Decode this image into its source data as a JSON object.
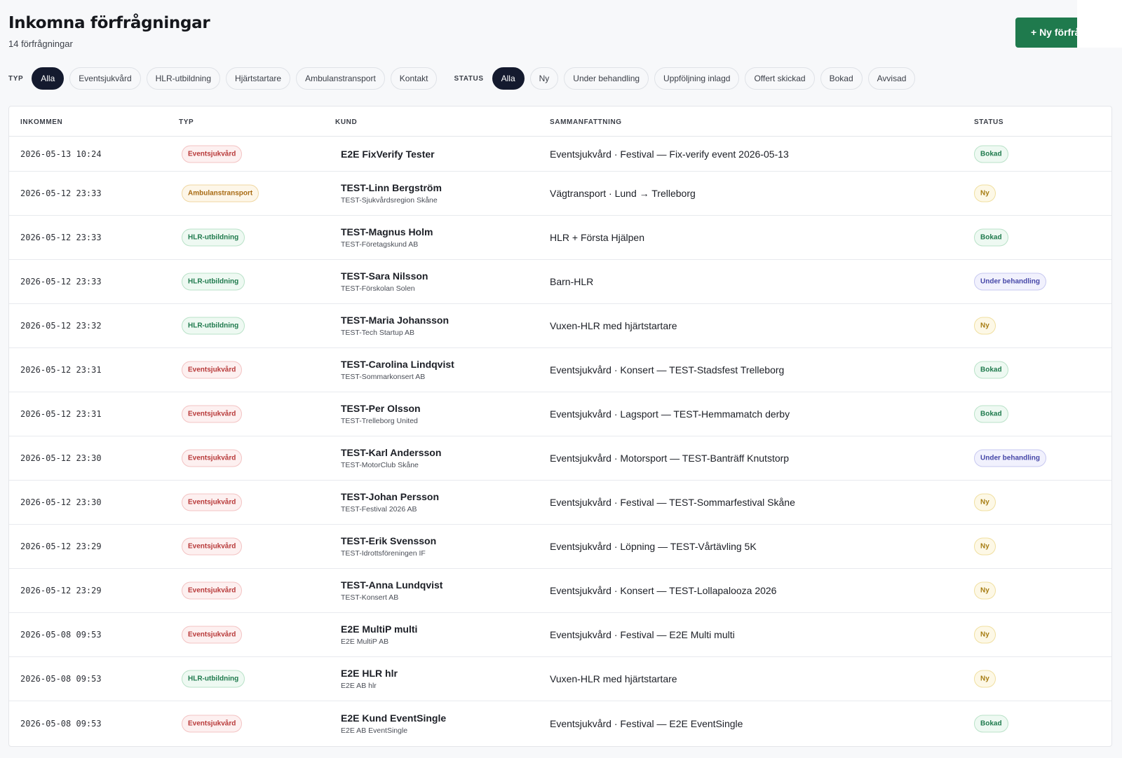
{
  "header": {
    "title": "Inkomna förfrågningar",
    "count_text": "14 förfrågningar",
    "new_button": "+ Ny förfrå"
  },
  "filters": {
    "type_label": "TYP",
    "type_options": [
      "Alla",
      "Eventsjukvård",
      "HLR-utbildning",
      "Hjärtstartare",
      "Ambulanstransport",
      "Kontakt"
    ],
    "type_selected": "Alla",
    "status_label": "STATUS",
    "status_options": [
      "Alla",
      "Ny",
      "Under behandling",
      "Uppföljning inlagd",
      "Offert skickad",
      "Bokad",
      "Avvisad"
    ],
    "status_selected": "Alla"
  },
  "table": {
    "columns": [
      "INKOMMEN",
      "TYP",
      "KUND",
      "SAMMANFATTNING",
      "STATUS"
    ],
    "rows": [
      {
        "date": "2026-05-13 10:24",
        "type": "Eventsjukvård",
        "name": "E2E FixVerify Tester",
        "org": "",
        "summary": "Eventsjukvård · Festival — Fix-verify event 2026-05-13",
        "status": "Bokad"
      },
      {
        "date": "2026-05-12 23:33",
        "type": "Ambulanstransport",
        "name": "TEST-Linn Bergström",
        "org": "TEST-Sjukvårdsregion Skåne",
        "summary": "Vägtransport · Lund → Trelleborg",
        "status": "Ny"
      },
      {
        "date": "2026-05-12 23:33",
        "type": "HLR-utbildning",
        "name": "TEST-Magnus Holm",
        "org": "TEST-Företagskund AB",
        "summary": "HLR + Första Hjälpen",
        "status": "Bokad"
      },
      {
        "date": "2026-05-12 23:33",
        "type": "HLR-utbildning",
        "name": "TEST-Sara Nilsson",
        "org": "TEST-Förskolan Solen",
        "summary": "Barn-HLR",
        "status": "Under behandling"
      },
      {
        "date": "2026-05-12 23:32",
        "type": "HLR-utbildning",
        "name": "TEST-Maria Johansson",
        "org": "TEST-Tech Startup AB",
        "summary": "Vuxen-HLR med hjärtstartare",
        "status": "Ny"
      },
      {
        "date": "2026-05-12 23:31",
        "type": "Eventsjukvård",
        "name": "TEST-Carolina Lindqvist",
        "org": "TEST-Sommarkonsert AB",
        "summary": "Eventsjukvård · Konsert — TEST-Stadsfest Trelleborg",
        "status": "Bokad"
      },
      {
        "date": "2026-05-12 23:31",
        "type": "Eventsjukvård",
        "name": "TEST-Per Olsson",
        "org": "TEST-Trelleborg United",
        "summary": "Eventsjukvård · Lagsport — TEST-Hemmamatch derby",
        "status": "Bokad"
      },
      {
        "date": "2026-05-12 23:30",
        "type": "Eventsjukvård",
        "name": "TEST-Karl Andersson",
        "org": "TEST-MotorClub Skåne",
        "summary": "Eventsjukvård · Motorsport — TEST-Banträff Knutstorp",
        "status": "Under behandling"
      },
      {
        "date": "2026-05-12 23:30",
        "type": "Eventsjukvård",
        "name": "TEST-Johan Persson",
        "org": "TEST-Festival 2026 AB",
        "summary": "Eventsjukvård · Festival — TEST-Sommarfestival Skåne",
        "status": "Ny"
      },
      {
        "date": "2026-05-12 23:29",
        "type": "Eventsjukvård",
        "name": "TEST-Erik Svensson",
        "org": "TEST-Idrottsföreningen IF",
        "summary": "Eventsjukvård · Löpning — TEST-Vårtävling 5K",
        "status": "Ny"
      },
      {
        "date": "2026-05-12 23:29",
        "type": "Eventsjukvård",
        "name": "TEST-Anna Lundqvist",
        "org": "TEST-Konsert AB",
        "summary": "Eventsjukvård · Konsert — TEST-Lollapalooza 2026",
        "status": "Ny"
      },
      {
        "date": "2026-05-08 09:53",
        "type": "Eventsjukvård",
        "name": "E2E MultiP multi",
        "org": "E2E MultiP AB",
        "summary": "Eventsjukvård · Festival — E2E Multi multi",
        "status": "Ny"
      },
      {
        "date": "2026-05-08 09:53",
        "type": "HLR-utbildning",
        "name": "E2E HLR hlr",
        "org": "E2E AB hlr",
        "summary": "Vuxen-HLR med hjärtstartare",
        "status": "Ny"
      },
      {
        "date": "2026-05-08 09:53",
        "type": "Eventsjukvård",
        "name": "E2E Kund EventSingle",
        "org": "E2E AB EventSingle",
        "summary": "Eventsjukvård · Festival — E2E EventSingle",
        "status": "Bokad"
      }
    ]
  }
}
